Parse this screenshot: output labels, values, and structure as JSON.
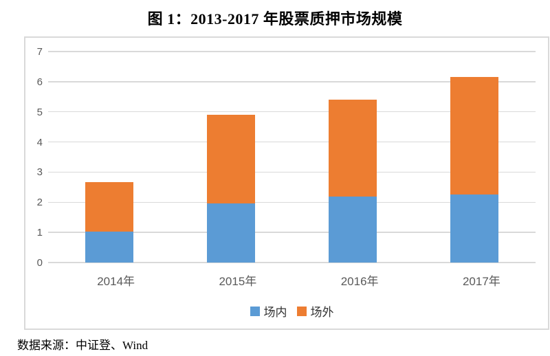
{
  "title": "图 1：2013-2017 年股票质押市场规模",
  "source_note": "数据来源：中证登、Wind",
  "colors": {
    "series_inner": "#5B9BD5",
    "series_outer": "#ED7D31",
    "gridline": "#D9D9D9",
    "frame_border": "#D9D9D9",
    "axis_text": "#595959",
    "title_text": "#000000"
  },
  "chart_data": {
    "type": "bar",
    "stacked": true,
    "title": "图 1：2013-2017 年股票质押市场规模",
    "categories": [
      "2014年",
      "2015年",
      "2016年",
      "2017年"
    ],
    "series": [
      {
        "name": "场内",
        "color": "#5B9BD5",
        "values": [
          1.02,
          1.95,
          2.2,
          2.25
        ]
      },
      {
        "name": "场外",
        "color": "#ED7D31",
        "values": [
          1.65,
          2.95,
          3.2,
          3.9
        ]
      }
    ],
    "stack_totals": [
      2.67,
      4.9,
      5.4,
      6.15
    ],
    "xlabel": "",
    "ylabel": "",
    "ylim": [
      0,
      7
    ],
    "yticks": [
      0,
      1,
      2,
      3,
      4,
      5,
      6,
      7
    ],
    "grid": true,
    "legend_position": "bottom",
    "source": "数据来源：中证登、Wind"
  }
}
